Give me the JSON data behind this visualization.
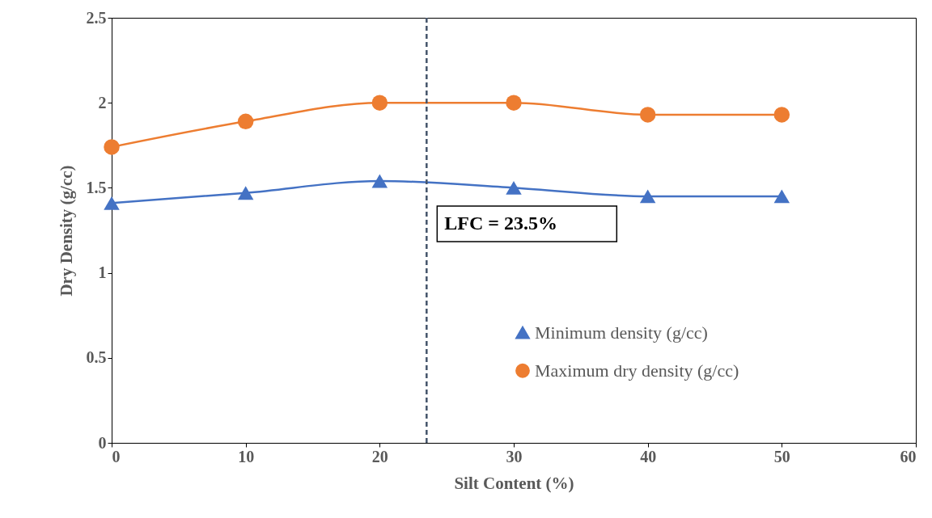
{
  "chart_data": {
    "type": "line",
    "xlabel": "Silt Content (%)",
    "ylabel": "Dry Density (g/cc)",
    "x": [
      0,
      10,
      20,
      30,
      40,
      50
    ],
    "series": [
      {
        "name": "Minimum density (g/cc)",
        "color": "#4472c4",
        "marker": "triangle",
        "values": [
          1.41,
          1.47,
          1.54,
          1.5,
          1.45,
          1.45
        ]
      },
      {
        "name": "Maximum dry density (g/cc)",
        "color": "#ed7d31",
        "marker": "circle",
        "values": [
          1.74,
          1.89,
          2.0,
          2.0,
          1.93,
          1.93
        ]
      }
    ],
    "xlim": [
      0,
      60
    ],
    "xticks": [
      0,
      10,
      20,
      30,
      40,
      50,
      60
    ],
    "ylim": [
      0,
      2.5
    ],
    "yticks": [
      0,
      0.5,
      1,
      1.5,
      2,
      2.5
    ],
    "ref_lines": [
      {
        "axis": "x",
        "value": 23.5,
        "label": "LFC = 23.5%",
        "color": "#44546a",
        "line_style": "dashed"
      }
    ],
    "legend": "bottom right",
    "grid": false,
    "line_style": "solid"
  }
}
